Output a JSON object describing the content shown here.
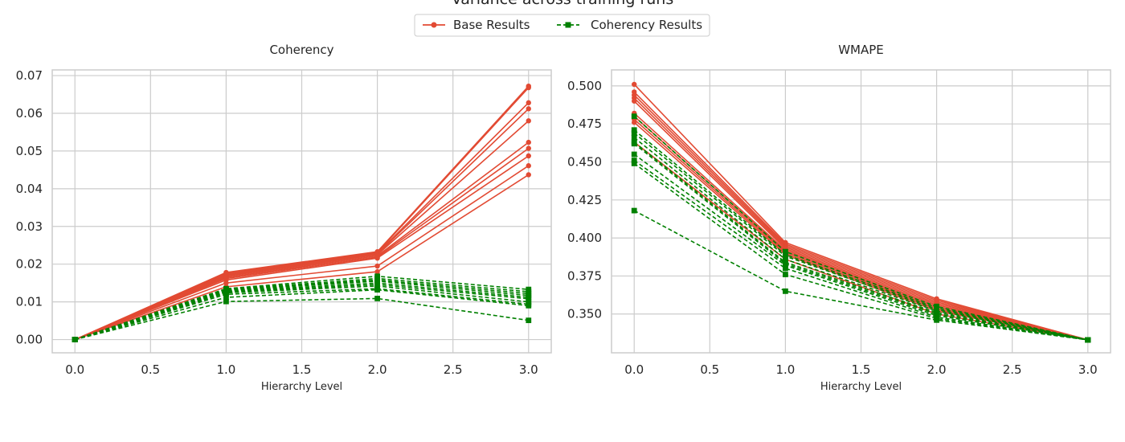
{
  "figure": {
    "title": "Variance across training runs"
  },
  "legend": {
    "placement": "top-center",
    "entries": [
      {
        "label": "Base Results",
        "color": "#e24a33",
        "style": "solid",
        "marker": "circle"
      },
      {
        "label": "Coherency Results",
        "color": "#008000",
        "style": "dashed",
        "marker": "square"
      }
    ]
  },
  "chart_data": [
    {
      "type": "line",
      "title": "Coherency",
      "xlabel": "Hierarchy Level",
      "ylabel": "",
      "xlim": [
        -0.15,
        3.15
      ],
      "ylim": [
        -0.0035,
        0.0715
      ],
      "xticks": [
        0.0,
        0.5,
        1.0,
        1.5,
        2.0,
        2.5,
        3.0
      ],
      "xtick_labels": [
        "0.0",
        "0.5",
        "1.0",
        "1.5",
        "2.0",
        "2.5",
        "3.0"
      ],
      "yticks": [
        0.0,
        0.01,
        0.02,
        0.03,
        0.04,
        0.05,
        0.06,
        0.07
      ],
      "ytick_labels": [
        "0.00",
        "0.01",
        "0.02",
        "0.03",
        "0.04",
        "0.05",
        "0.06",
        "0.07"
      ],
      "grid": true,
      "x": [
        0,
        1,
        2,
        3
      ],
      "series": [
        {
          "group": "base",
          "values": [
            0,
            0.0178,
            0.0233,
            0.0672
          ]
        },
        {
          "group": "base",
          "values": [
            0,
            0.0175,
            0.0231,
            0.0668
          ]
        },
        {
          "group": "base",
          "values": [
            0,
            0.0172,
            0.0229,
            0.0628
          ]
        },
        {
          "group": "base",
          "values": [
            0,
            0.017,
            0.0227,
            0.0612
          ]
        },
        {
          "group": "base",
          "values": [
            0,
            0.0168,
            0.0225,
            0.058
          ]
        },
        {
          "group": "base",
          "values": [
            0,
            0.0165,
            0.0222,
            0.0523
          ]
        },
        {
          "group": "base",
          "values": [
            0,
            0.0162,
            0.0219,
            0.0507
          ]
        },
        {
          "group": "base",
          "values": [
            0,
            0.0158,
            0.0216,
            0.0487
          ]
        },
        {
          "group": "base",
          "values": [
            0,
            0.015,
            0.0195,
            0.0461
          ]
        },
        {
          "group": "base",
          "values": [
            0,
            0.014,
            0.018,
            0.0437
          ]
        },
        {
          "group": "coherency",
          "values": [
            0,
            0.0135,
            0.0168,
            0.0133
          ]
        },
        {
          "group": "coherency",
          "values": [
            0,
            0.0133,
            0.0162,
            0.0127
          ]
        },
        {
          "group": "coherency",
          "values": [
            0,
            0.0132,
            0.0158,
            0.0122
          ]
        },
        {
          "group": "coherency",
          "values": [
            0,
            0.013,
            0.0155,
            0.0117
          ]
        },
        {
          "group": "coherency",
          "values": [
            0,
            0.0128,
            0.015,
            0.0112
          ]
        },
        {
          "group": "coherency",
          "values": [
            0,
            0.0126,
            0.0146,
            0.0108
          ]
        },
        {
          "group": "coherency",
          "values": [
            0,
            0.0124,
            0.0142,
            0.01
          ]
        },
        {
          "group": "coherency",
          "values": [
            0,
            0.012,
            0.0135,
            0.0094
          ]
        },
        {
          "group": "coherency",
          "values": [
            0,
            0.0112,
            0.0132,
            0.009
          ]
        },
        {
          "group": "coherency",
          "values": [
            0,
            0.0101,
            0.0109,
            0.0051
          ]
        }
      ]
    },
    {
      "type": "line",
      "title": "WMAPE",
      "xlabel": "Hierarchy Level",
      "ylabel": "",
      "xlim": [
        -0.15,
        3.15
      ],
      "ylim": [
        0.3245,
        0.5105
      ],
      "xticks": [
        0.0,
        0.5,
        1.0,
        1.5,
        2.0,
        2.5,
        3.0
      ],
      "xtick_labels": [
        "0.0",
        "0.5",
        "1.0",
        "1.5",
        "2.0",
        "2.5",
        "3.0"
      ],
      "yticks": [
        0.35,
        0.375,
        0.4,
        0.425,
        0.45,
        0.475,
        0.5
      ],
      "ytick_labels": [
        "0.350",
        "0.375",
        "0.400",
        "0.425",
        "0.450",
        "0.475",
        "0.500"
      ],
      "grid": true,
      "x": [
        0,
        1,
        2,
        3
      ],
      "series": [
        {
          "group": "base",
          "values": [
            0.501,
            0.397,
            0.36,
            0.333
          ]
        },
        {
          "group": "base",
          "values": [
            0.496,
            0.396,
            0.359,
            0.333
          ]
        },
        {
          "group": "base",
          "values": [
            0.494,
            0.395,
            0.358,
            0.333
          ]
        },
        {
          "group": "base",
          "values": [
            0.492,
            0.394,
            0.357,
            0.333
          ]
        },
        {
          "group": "base",
          "values": [
            0.49,
            0.393,
            0.356,
            0.333
          ]
        },
        {
          "group": "base",
          "values": [
            0.482,
            0.392,
            0.355,
            0.333
          ]
        },
        {
          "group": "base",
          "values": [
            0.48,
            0.391,
            0.354,
            0.333
          ]
        },
        {
          "group": "base",
          "values": [
            0.478,
            0.39,
            0.353,
            0.333
          ]
        },
        {
          "group": "base",
          "values": [
            0.476,
            0.389,
            0.352,
            0.333
          ]
        },
        {
          "group": "base",
          "values": [
            0.463,
            0.386,
            0.35,
            0.333
          ]
        },
        {
          "group": "coherency",
          "values": [
            0.48,
            0.391,
            0.355,
            0.333
          ]
        },
        {
          "group": "coherency",
          "values": [
            0.471,
            0.389,
            0.354,
            0.333
          ]
        },
        {
          "group": "coherency",
          "values": [
            0.469,
            0.388,
            0.353,
            0.333
          ]
        },
        {
          "group": "coherency",
          "values": [
            0.466,
            0.386,
            0.352,
            0.333
          ]
        },
        {
          "group": "coherency",
          "values": [
            0.463,
            0.384,
            0.351,
            0.333
          ]
        },
        {
          "group": "coherency",
          "values": [
            0.462,
            0.383,
            0.35,
            0.333
          ]
        },
        {
          "group": "coherency",
          "values": [
            0.455,
            0.382,
            0.349,
            0.333
          ]
        },
        {
          "group": "coherency",
          "values": [
            0.451,
            0.38,
            0.348,
            0.333
          ]
        },
        {
          "group": "coherency",
          "values": [
            0.449,
            0.376,
            0.347,
            0.333
          ]
        },
        {
          "group": "coherency",
          "values": [
            0.418,
            0.365,
            0.346,
            0.333
          ]
        }
      ]
    }
  ]
}
